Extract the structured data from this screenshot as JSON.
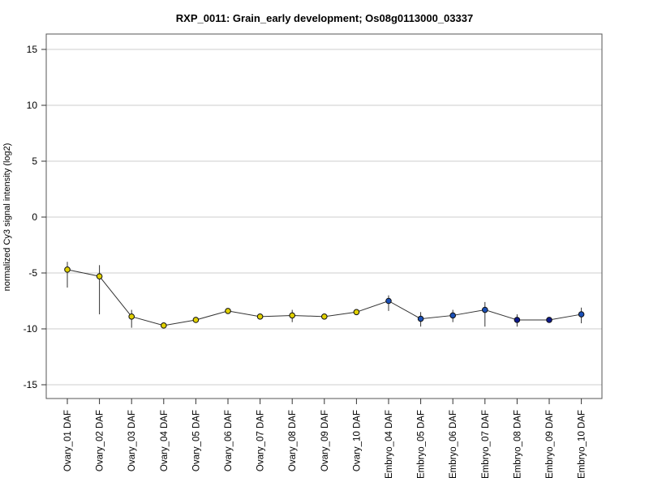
{
  "chart_data": {
    "type": "line",
    "title": "RXP_0011: Grain_early development; Os08g0113000_03337",
    "xlabel": "",
    "ylabel": "normalized Cy3 signal intensity (log2)",
    "ylim": [
      -16,
      16
    ],
    "yticks": [
      -15,
      -10,
      -5,
      0,
      5,
      10,
      15
    ],
    "grid": "horizontal",
    "categories": [
      "Ovary_01 DAF",
      "Ovary_02 DAF",
      "Ovary_03 DAF",
      "Ovary_04 DAF",
      "Ovary_05 DAF",
      "Ovary_06 DAF",
      "Ovary_07 DAF",
      "Ovary_08 DAF",
      "Ovary_09 DAF",
      "Ovary_10 DAF",
      "Embryo_04 DAF",
      "Embryo_05 DAF",
      "Embryo_06 DAF",
      "Embryo_07 DAF",
      "Embryo_08 DAF",
      "Embryo_09 DAF",
      "Embryo_10 DAF"
    ],
    "values": [
      -4.7,
      -5.3,
      -8.9,
      -9.7,
      -9.2,
      -8.4,
      -8.9,
      -8.8,
      -8.9,
      -8.5,
      -7.5,
      -9.1,
      -8.8,
      -8.3,
      -9.2,
      -9.2,
      -8.7
    ],
    "error_low": [
      -6.3,
      -8.7,
      -9.9,
      -9.9,
      -9.4,
      -8.5,
      -9.1,
      -9.4,
      -9.0,
      -8.7,
      -8.4,
      -9.8,
      -9.4,
      -9.8,
      -9.8,
      -9.3,
      -9.5
    ],
    "error_high": [
      -4.0,
      -4.3,
      -8.3,
      -9.5,
      -9.0,
      -8.3,
      -8.7,
      -8.3,
      -8.8,
      -8.3,
      -7.0,
      -8.5,
      -8.3,
      -7.6,
      -8.7,
      -9.1,
      -8.1
    ],
    "point_colors": [
      "#e0d000",
      "#e0d000",
      "#e0d000",
      "#e0d000",
      "#e0d000",
      "#e0d000",
      "#e0d000",
      "#e0d000",
      "#e0d000",
      "#e0d000",
      "#1a50b8",
      "#1a50b8",
      "#1a50b8",
      "#1a50b8",
      "#0d1a8c",
      "#0d1a8c",
      "#1a50b8"
    ],
    "line_color": "#333333"
  }
}
